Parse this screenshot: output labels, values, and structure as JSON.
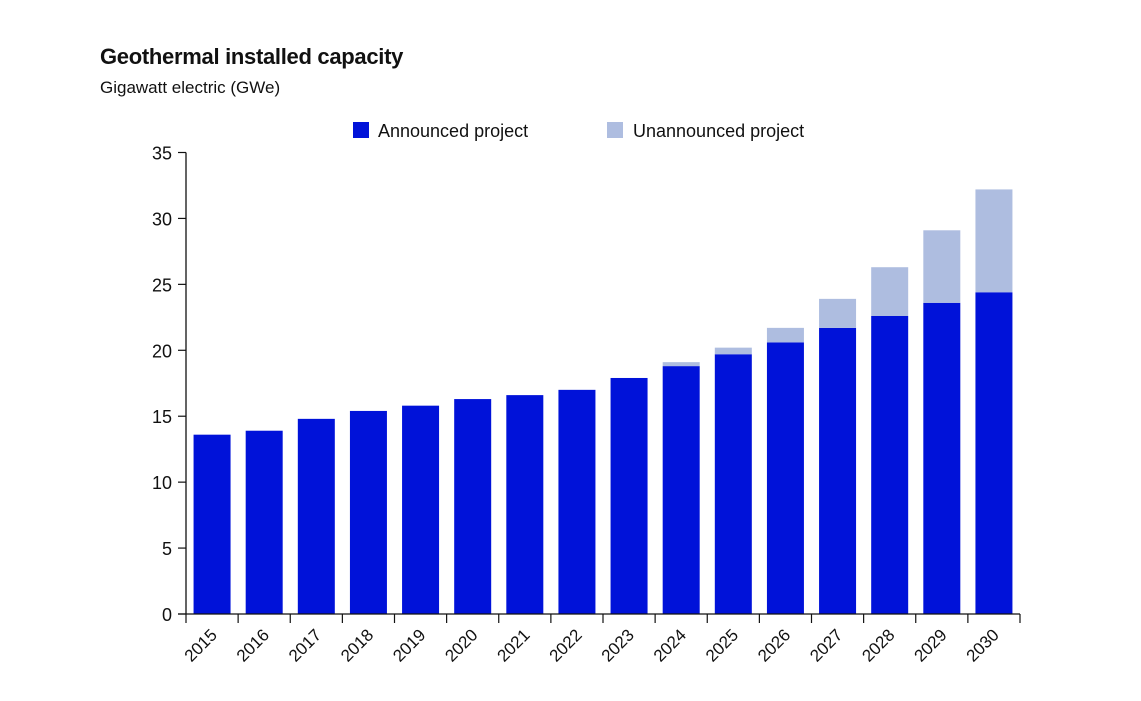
{
  "chart_data": {
    "type": "bar",
    "stacked": true,
    "title": "Geothermal installed capacity",
    "subtitle": "Gigawatt electric (GWe)",
    "xlabel": "",
    "ylabel": "",
    "ylim": [
      0,
      35
    ],
    "yticks": [
      "0",
      "5",
      "10",
      "15",
      "20",
      "25",
      "30",
      "35"
    ],
    "grid": false,
    "legend_position": "top",
    "categories": [
      "2015",
      "2016",
      "2017",
      "2018",
      "2019",
      "2020",
      "2021",
      "2022",
      "2023",
      "2024",
      "2025",
      "2026",
      "2027",
      "2028",
      "2029",
      "2030"
    ],
    "series": [
      {
        "name": "Announced project",
        "color": "#0012d9",
        "values": [
          13.6,
          13.9,
          14.8,
          15.4,
          15.8,
          16.3,
          16.6,
          17.0,
          17.9,
          18.8,
          19.7,
          20.6,
          21.7,
          22.6,
          23.6,
          24.4
        ]
      },
      {
        "name": "Unannounced project",
        "color": "#aebde0",
        "values": [
          0,
          0,
          0,
          0,
          0,
          0,
          0,
          0,
          0,
          0.3,
          0.5,
          1.1,
          2.2,
          3.7,
          5.5,
          7.8
        ]
      }
    ]
  }
}
